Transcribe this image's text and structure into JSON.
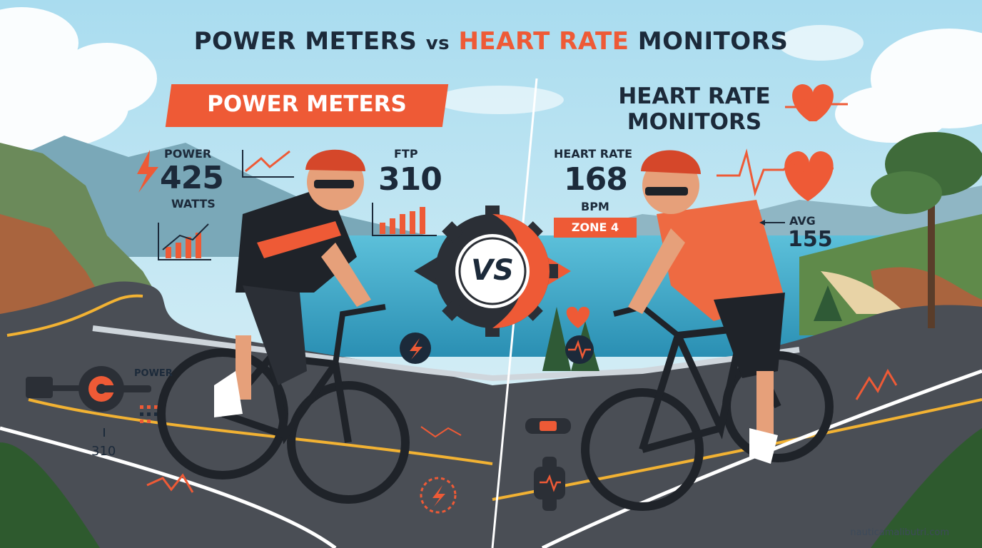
{
  "title": {
    "part1": "POWER METERS",
    "vs": "vs",
    "part2": "HEART RATE",
    "part3": "MONITORS"
  },
  "power_panel": {
    "banner": "POWER METERS",
    "power_label": "POWER",
    "power_value": "425",
    "power_unit": "WATTS",
    "ftp_label": "FTP",
    "ftp_value": "310",
    "crank_label": "POWER",
    "crank_value": "310"
  },
  "center": {
    "vs_label": "VS"
  },
  "heart_panel": {
    "title": "HEART RATE MONITORS",
    "hr_label": "HEART RATE",
    "hr_value": "168",
    "hr_unit": "BPM",
    "zone": "ZONE 4",
    "avg_label": "AVG",
    "avg_value": "155"
  },
  "footer": {
    "watermark": "nauticamalibutri.com"
  },
  "colors": {
    "accent": "#ee5a36",
    "dark": "#1c2a3a",
    "sky": "#bfe6f4",
    "sea": "#3aa7c9",
    "road": "#4a4e55"
  }
}
